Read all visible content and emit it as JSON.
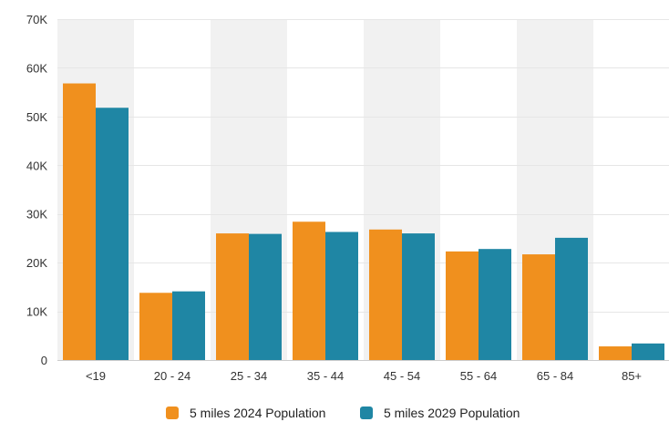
{
  "chart_data": {
    "type": "bar",
    "categories": [
      "<19",
      "20 - 24",
      "25 - 34",
      "35 - 44",
      "45 - 54",
      "55 - 64",
      "65 - 84",
      "85+"
    ],
    "series": [
      {
        "name": "5 miles 2024 Population",
        "color": "#F0901E",
        "values": [
          56800,
          13800,
          26000,
          28400,
          26800,
          22300,
          21700,
          2800
        ]
      },
      {
        "name": "5 miles 2029 Population",
        "color": "#1F86A4",
        "values": [
          51800,
          14100,
          25900,
          26300,
          26000,
          22800,
          25100,
          3400
        ]
      }
    ],
    "ylim": [
      0,
      70000
    ],
    "yticks": [
      0,
      10000,
      20000,
      30000,
      40000,
      50000,
      60000,
      70000
    ],
    "ytick_labels": [
      "0",
      "10K",
      "20K",
      "30K",
      "40K",
      "50K",
      "60K",
      "70K"
    ],
    "grid": true,
    "alternating_bands": true,
    "band_color": "#F1F1F1",
    "grid_color": "#E6E6E6",
    "legend_position": "bottom-center"
  }
}
